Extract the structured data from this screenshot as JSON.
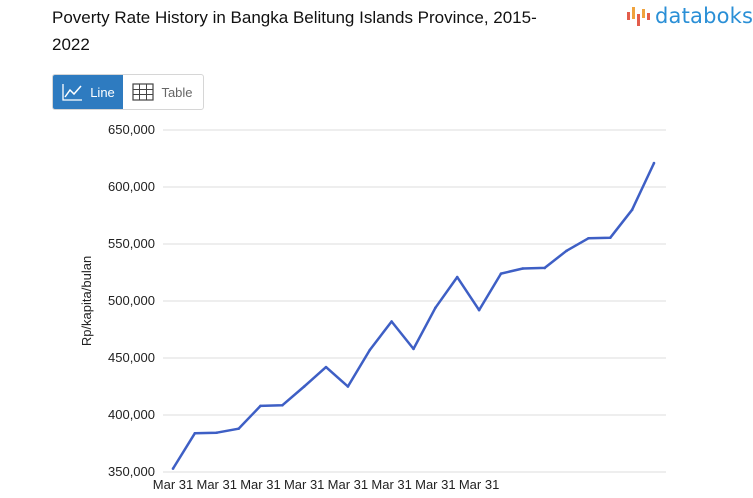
{
  "header": {
    "title": "Poverty Rate History in Bangka Belitung Islands Province, 2015-2022",
    "brand": "databoks"
  },
  "view_toggle": {
    "line_label": "Line",
    "table_label": "Table",
    "selected": "Line"
  },
  "colors": {
    "line": "#3e5fc5",
    "accent": "#2e7bc0",
    "brand": "#2a8fd6",
    "grid": "#dddddd"
  },
  "chart_data": {
    "type": "line",
    "ylabel": "Rp/kapita/bulan",
    "xlabel": "",
    "ylim": [
      350000,
      650000
    ],
    "yticks": [
      "350,000",
      "400,000",
      "450,000",
      "500,000",
      "550,000",
      "600,000",
      "650,000"
    ],
    "ytick_values": [
      350000,
      400000,
      450000,
      500000,
      550000,
      600000,
      650000
    ],
    "xticks": [
      "Mar 31",
      "Mar 31",
      "Mar 31",
      "Mar 31",
      "Mar 31",
      "Mar 31",
      "Mar 31",
      "Mar 31"
    ],
    "xtick_index": [
      0,
      2,
      4,
      6,
      8,
      10,
      12,
      14
    ],
    "grid": true,
    "series": [
      {
        "values": [
          353000,
          384000,
          384500,
          388000,
          408000,
          408500,
          425000,
          442000,
          425000,
          457000,
          482000,
          458000,
          494000,
          521000,
          492000,
          524000,
          528500,
          529000,
          544000,
          555000,
          555500,
          580000,
          621000
        ]
      }
    ]
  }
}
